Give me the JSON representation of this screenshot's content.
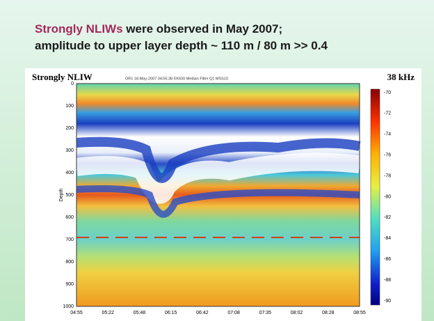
{
  "slide": {
    "title_highlight": "Strongly NLIWs",
    "title_rest": " were observed in May 2007;",
    "title_line2": "amplitude to upper layer depth ~  110 m / 80 m >> 0.4"
  },
  "figure": {
    "title": "Strongly NLIW",
    "subtitle": "OR1 18-May-2007 04:55:38 EK500 Median Filter Q1 MSS10",
    "frequency": "38 kHz",
    "y_label": "Depth",
    "y_ticks": [
      "0",
      "100",
      "200",
      "300",
      "400",
      "500",
      "600",
      "700",
      "800",
      "900",
      "1000"
    ],
    "x_ticks": [
      "04:55",
      "05:22",
      "05:48",
      "06:15",
      "06:42",
      "07:08",
      "07:35",
      "08:02",
      "08:28",
      "08:55"
    ],
    "colorbar_ticks": [
      "-70",
      "-72",
      "-74",
      "-76",
      "-78",
      "-80",
      "-82",
      "-84",
      "-86",
      "-88",
      "-90"
    ]
  }
}
